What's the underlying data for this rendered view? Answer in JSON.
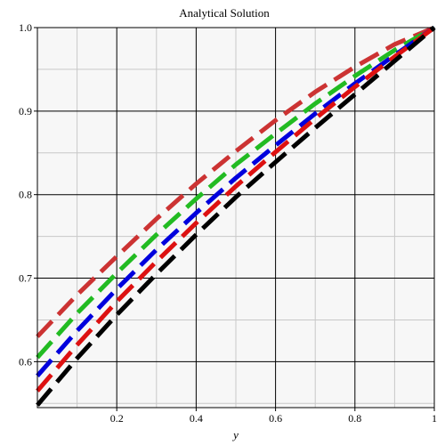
{
  "chart_data": {
    "type": "line",
    "title": "Analytical Solution",
    "xlabel": "y",
    "ylabel": "",
    "xlim": [
      0,
      1
    ],
    "ylim": [
      0.545,
      1.0
    ],
    "grid": true,
    "x_ticks": [
      0.2,
      0.4,
      0.6,
      0.8,
      1
    ],
    "x_tick_labels": [
      "0.2",
      "0.4",
      "0.6",
      "0.8",
      "1"
    ],
    "y_ticks": [
      0.6,
      0.7,
      0.8,
      0.9,
      1.0
    ],
    "y_tick_labels": [
      "0.6",
      "0.7",
      "0.8",
      "0.9",
      "1.0"
    ],
    "x": [
      0,
      0.1,
      0.2,
      0.3,
      0.4,
      0.5,
      0.6,
      0.7,
      0.8,
      0.9,
      1.0
    ],
    "series": [
      {
        "color": "#cc3333",
        "values": [
          0.63,
          0.68,
          0.726,
          0.771,
          0.813,
          0.852,
          0.889,
          0.923,
          0.953,
          0.98,
          1.0
        ]
      },
      {
        "color": "#22bb22",
        "values": [
          0.605,
          0.658,
          0.706,
          0.752,
          0.795,
          0.836,
          0.873,
          0.909,
          0.942,
          0.973,
          1.0
        ]
      },
      {
        "color": "#0000dd",
        "values": [
          0.583,
          0.637,
          0.687,
          0.734,
          0.778,
          0.82,
          0.859,
          0.897,
          0.933,
          0.967,
          1.0
        ]
      },
      {
        "color": "#dd1111",
        "values": [
          0.565,
          0.62,
          0.672,
          0.72,
          0.766,
          0.81,
          0.851,
          0.891,
          0.929,
          0.965,
          1.0
        ]
      },
      {
        "color": "#000000",
        "values": [
          0.548,
          0.604,
          0.656,
          0.705,
          0.752,
          0.797,
          0.839,
          0.88,
          0.92,
          0.96,
          1.0
        ]
      }
    ]
  }
}
